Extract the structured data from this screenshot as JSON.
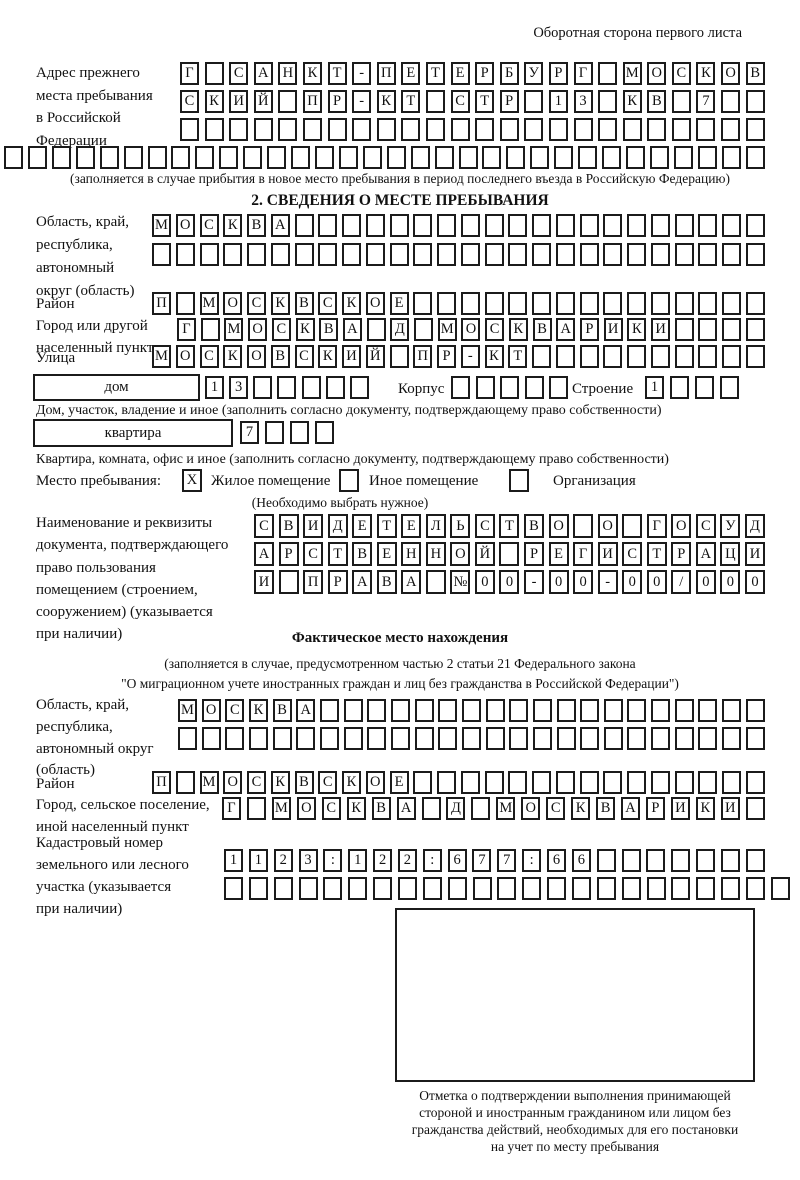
{
  "header": {
    "note": "Оборотная сторона первого листа"
  },
  "prev_address": {
    "label_lines": [
      "Адрес прежнего",
      "места пребывания",
      "в Российской",
      "Федерации"
    ],
    "rows": [
      {
        "text": "Г САНКТ-ПЕТЕРБУРГ МОСКОВ",
        "count": 24
      },
      {
        "text": "СКИЙ ПР-КТ СТР 13 КВ 7",
        "count": 24
      },
      {
        "text": "",
        "count": 24
      },
      {
        "text": "",
        "count": 32
      }
    ],
    "note": "(заполняется в случае прибытия в новое место пребывания в период последнего въезда в Российскую Федерацию)"
  },
  "stay_info": {
    "title": "2. СВЕДЕНИЯ О МЕСТЕ ПРЕБЫВАНИЯ",
    "region": {
      "label_lines": [
        "Область, край,",
        "республика,",
        "автономный",
        "округ (область)"
      ],
      "rows": [
        {
          "text": "МОСКВА",
          "count": 26
        },
        {
          "text": "",
          "count": 26
        }
      ]
    },
    "district": {
      "label": "Район",
      "row": {
        "text": "П МОСКВСКОЕ",
        "count": 26
      }
    },
    "city": {
      "label_lines": [
        "Город или другой",
        "населенный пункт"
      ],
      "row": {
        "text": "Г МОСКВА Д МОСКВАРИКИ",
        "count": 25
      }
    },
    "street": {
      "label": "Улица",
      "row": {
        "text": "МОСКОВСКИЙ ПР-КТ",
        "count": 26
      }
    },
    "house": {
      "box_label": "дом",
      "house_cells": {
        "text": "13",
        "count": 7
      },
      "korpus_label": "Корпус",
      "korpus_cells": {
        "text": "",
        "count": 5
      },
      "stroenie_label": "Строение",
      "stroenie_cells": {
        "text": "1",
        "count": 4
      },
      "note": "Дом, участок, владение и иное (заполнить согласно документу, подтверждающему право собственности)"
    },
    "apartment": {
      "box_label": "квартира",
      "cells": {
        "text": "7",
        "count": 4
      },
      "note": "Квартира, комната, офис и иное (заполнить согласно документу, подтверждающему право собственности)"
    },
    "stay_type": {
      "label": "Место пребывания:",
      "options": [
        {
          "label": "Жилое помещение",
          "mark": "X"
        },
        {
          "label": "Иное помещение",
          "mark": ""
        },
        {
          "label": "Организация",
          "mark": ""
        }
      ],
      "note": "(Необходимо выбрать нужное)"
    },
    "document": {
      "label_lines": [
        "Наименование и реквизиты",
        "документа, подтверждающего",
        "право пользования",
        "помещением (строением,",
        "сооружением) (указывается",
        "при наличии)"
      ],
      "rows": [
        {
          "text": "СВИДЕТЕЛЬСТВО О ГОСУД",
          "count": 21
        },
        {
          "text": "АРСТВЕННОЙ РЕГИСТРАЦИ",
          "count": 21
        },
        {
          "text": "И ПРАВА №00-00-00/000",
          "count": 21
        }
      ]
    }
  },
  "actual_location": {
    "title": "Фактическое место нахождения",
    "note_lines": [
      "(заполняется в случае, предусмотренном частью 2 статьи 21 Федерального закона",
      "\"О миграционном учете иностранных граждан и лиц без гражданства в Российской Федерации\")"
    ],
    "region": {
      "label_lines": [
        "Область, край,",
        "республика,",
        "автономный округ",
        "(область)"
      ],
      "rows": [
        {
          "text": "МОСКВА",
          "count": 25
        },
        {
          "text": "",
          "count": 25
        }
      ]
    },
    "district": {
      "label": "Район",
      "row": {
        "text": "П МОСКВСКОЕ",
        "count": 26
      }
    },
    "city": {
      "label_lines": [
        "Город, сельское поселение,",
        "иной населенный пункт"
      ],
      "row": {
        "text": "Г МОСКВА Д МОСКВАРИКИ",
        "count": 22
      }
    },
    "cadastral": {
      "label_lines": [
        "Кадастровый номер",
        "земельного или лесного",
        "участка (указывается",
        "при наличии)"
      ],
      "rows": [
        {
          "text": "1123:122:677:66",
          "count": 22
        },
        {
          "text": "",
          "count": 23
        }
      ]
    },
    "stamp": {
      "caption_lines": [
        "Отметка о подтверждении выполнения принимающей",
        "стороной и иностранным гражданином или лицом без",
        "гражданства действий, необходимых для его постановки",
        "на учет по месту пребывания"
      ]
    }
  }
}
